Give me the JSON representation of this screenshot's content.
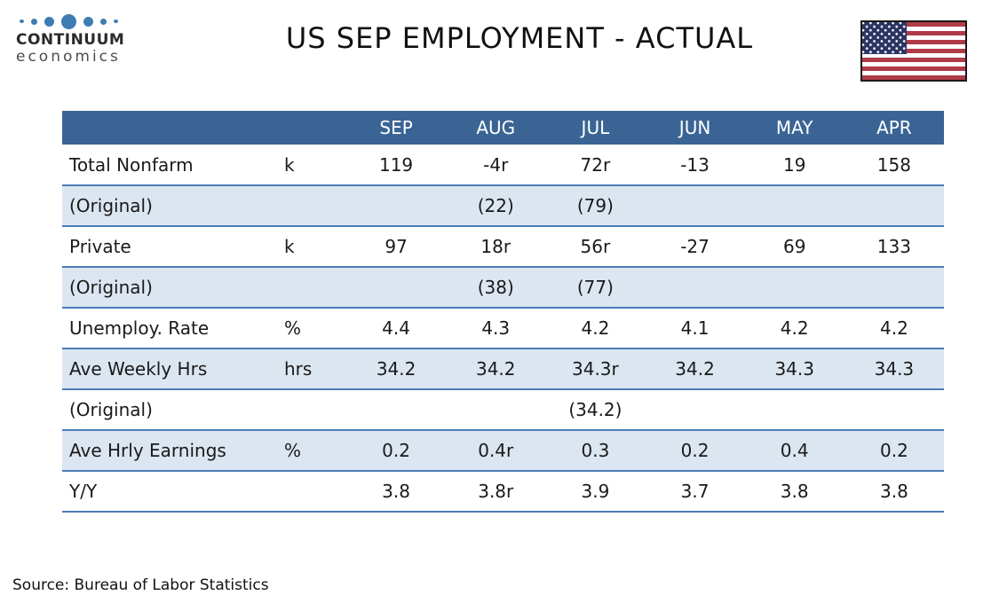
{
  "logo": {
    "line1": "CONTINUUM",
    "line2": "economics"
  },
  "title": "US SEP EMPLOYMENT - ACTUAL",
  "flag": {
    "name": "us-flag"
  },
  "table": {
    "months": [
      "SEP",
      "AUG",
      "JUL",
      "JUN",
      "MAY",
      "APR"
    ],
    "rows": [
      {
        "label": "Total Nonfarm",
        "unit": "k",
        "values": [
          "119",
          "-4r",
          "72r",
          "-13",
          "19",
          "158"
        ],
        "shaded": false
      },
      {
        "label": "(Original)",
        "unit": "",
        "values": [
          "",
          "(22)",
          "(79)",
          "",
          "",
          ""
        ],
        "shaded": true
      },
      {
        "label": "Private",
        "unit": "k",
        "values": [
          "97",
          "18r",
          "56r",
          "-27",
          "69",
          "133"
        ],
        "shaded": false
      },
      {
        "label": "(Original)",
        "unit": "",
        "values": [
          "",
          "(38)",
          "(77)",
          "",
          "",
          ""
        ],
        "shaded": true
      },
      {
        "label": "Unemploy. Rate",
        "unit": "%",
        "values": [
          "4.4",
          "4.3",
          "4.2",
          "4.1",
          "4.2",
          "4.2"
        ],
        "shaded": false
      },
      {
        "label": "Ave Weekly Hrs",
        "unit": "hrs",
        "values": [
          "34.2",
          "34.2",
          "34.3r",
          "34.2",
          "34.3",
          "34.3"
        ],
        "shaded": true
      },
      {
        "label": "(Original)",
        "unit": "",
        "values": [
          "",
          "",
          "(34.2)",
          "",
          "",
          ""
        ],
        "shaded": false
      },
      {
        "label": "Ave Hrly Earnings",
        "unit": "%",
        "values": [
          "0.2",
          "0.4r",
          "0.3",
          "0.2",
          "0.4",
          "0.2"
        ],
        "shaded": true
      },
      {
        "label": "Y/Y",
        "unit": "",
        "values": [
          "3.8",
          "3.8r",
          "3.9",
          "3.7",
          "3.8",
          "3.8"
        ],
        "shaded": false
      }
    ]
  },
  "source": "Source: Bureau of Labor Statistics",
  "colors": {
    "header_bg": "#3a6494",
    "shaded_row": "#dce6f1",
    "border": "#4a7cb8",
    "logo_blue": "#3e7cb1",
    "flag_red": "#af3b47",
    "flag_navy": "#2a3564"
  }
}
